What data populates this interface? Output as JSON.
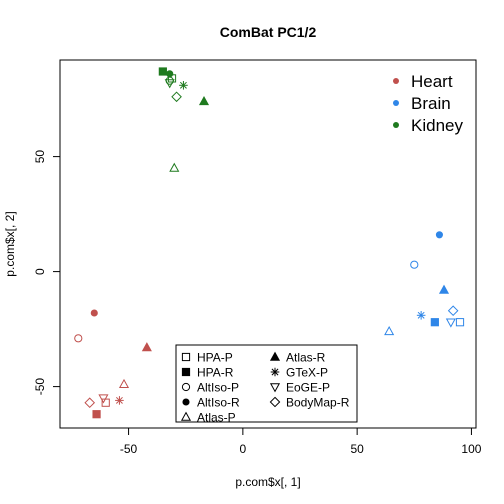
{
  "chart_data": {
    "type": "scatter",
    "title": "ComBat PC1/2",
    "xlabel": "p.com$x[, 1]",
    "ylabel": "p.com$x[, 2]",
    "xlim": [
      -80,
      102
    ],
    "ylim": [
      -68,
      92
    ],
    "x_ticks": [
      -50,
      0,
      50,
      100
    ],
    "y_ticks": [
      -50,
      0,
      50
    ],
    "grid": false,
    "color_legend": {
      "placement": "top-right",
      "entries": [
        {
          "label": "Heart",
          "color": "#c0504d"
        },
        {
          "label": "Brain",
          "color": "#2f86e8"
        },
        {
          "label": "Kidney",
          "color": "#1f7a1f"
        }
      ]
    },
    "shape_legend": {
      "placement": "bottom-center",
      "entries": [
        {
          "label": "HPA-P",
          "shape": "square-open"
        },
        {
          "label": "HPA-R",
          "shape": "square-filled"
        },
        {
          "label": "AltIso-P",
          "shape": "circle-open"
        },
        {
          "label": "AltIso-R",
          "shape": "circle-filled"
        },
        {
          "label": "Atlas-P",
          "shape": "triangle-up-open"
        },
        {
          "label": "Atlas-R",
          "shape": "triangle-up-filled"
        },
        {
          "label": "GTeX-P",
          "shape": "asterisk"
        },
        {
          "label": "EoGE-P",
          "shape": "triangle-down-open"
        },
        {
          "label": "BodyMap-R",
          "shape": "diamond-open"
        }
      ]
    },
    "points": [
      {
        "group": "Heart",
        "study": "HPA-P",
        "x": -60,
        "y": -57
      },
      {
        "group": "Heart",
        "study": "HPA-R",
        "x": -64,
        "y": -62
      },
      {
        "group": "Heart",
        "study": "AltIso-P",
        "x": -72,
        "y": -29
      },
      {
        "group": "Heart",
        "study": "AltIso-R",
        "x": -65,
        "y": -18
      },
      {
        "group": "Heart",
        "study": "Atlas-P",
        "x": -52,
        "y": -49
      },
      {
        "group": "Heart",
        "study": "Atlas-R",
        "x": -42,
        "y": -33
      },
      {
        "group": "Heart",
        "study": "GTeX-P",
        "x": -54,
        "y": -56
      },
      {
        "group": "Heart",
        "study": "EoGE-P",
        "x": -61,
        "y": -55
      },
      {
        "group": "Heart",
        "study": "BodyMap-R",
        "x": -67,
        "y": -57
      },
      {
        "group": "Brain",
        "study": "HPA-P",
        "x": 95,
        "y": -22
      },
      {
        "group": "Brain",
        "study": "HPA-R",
        "x": 84,
        "y": -22
      },
      {
        "group": "Brain",
        "study": "AltIso-P",
        "x": 75,
        "y": 3
      },
      {
        "group": "Brain",
        "study": "AltIso-R",
        "x": 86,
        "y": 16
      },
      {
        "group": "Brain",
        "study": "Atlas-P",
        "x": 64,
        "y": -26
      },
      {
        "group": "Brain",
        "study": "Atlas-R",
        "x": 88,
        "y": -8
      },
      {
        "group": "Brain",
        "study": "GTeX-P",
        "x": 78,
        "y": -19
      },
      {
        "group": "Brain",
        "study": "EoGE-P",
        "x": 91,
        "y": -22
      },
      {
        "group": "Brain",
        "study": "BodyMap-R",
        "x": 92,
        "y": -17
      },
      {
        "group": "Kidney",
        "study": "HPA-P",
        "x": -31,
        "y": 84
      },
      {
        "group": "Kidney",
        "study": "HPA-R",
        "x": -35,
        "y": 87
      },
      {
        "group": "Kidney",
        "study": "AltIso-P",
        "x": -32,
        "y": 83
      },
      {
        "group": "Kidney",
        "study": "AltIso-R",
        "x": -32,
        "y": 86
      },
      {
        "group": "Kidney",
        "study": "Atlas-P",
        "x": -30,
        "y": 45
      },
      {
        "group": "Kidney",
        "study": "Atlas-R",
        "x": -17,
        "y": 74
      },
      {
        "group": "Kidney",
        "study": "GTeX-P",
        "x": -26,
        "y": 81
      },
      {
        "group": "Kidney",
        "study": "EoGE-P",
        "x": -32,
        "y": 82
      },
      {
        "group": "Kidney",
        "study": "BodyMap-R",
        "x": -29,
        "y": 76
      }
    ]
  }
}
